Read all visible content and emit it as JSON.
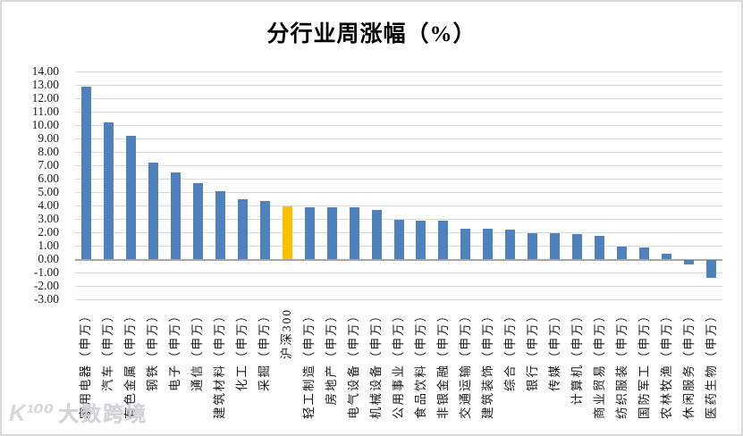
{
  "watermark": {
    "logo": "K¹⁰⁰",
    "text": "大数跨境"
  },
  "chart_data": {
    "type": "bar",
    "title": "分行业周涨幅（%）",
    "xlabel": "",
    "ylabel": "",
    "ylim": [
      -3,
      14
    ],
    "ytick_step": 1,
    "ytick_format": "two-decimals",
    "grid": true,
    "legend_position": "none",
    "bar_color": "#4F81BD",
    "highlight_color": "#FFC000",
    "highlight_category": "沪深300",
    "gridline_color": "#d9d9d9",
    "axis_line_color": "#a6a6a6",
    "categories": [
      "家用电器（申万）",
      "汽车（申万）",
      "有色金属（申万）",
      "钢铁（申万）",
      "电子（申万）",
      "通信（申万）",
      "建筑材料（申万）",
      "化工（申万）",
      "采掘（申万）",
      "沪深300",
      "轻工制造（申万）",
      "房地产（申万）",
      "电气设备（申万）",
      "机械设备（申万）",
      "公用事业（申万）",
      "食品饮料（申万）",
      "非银金融（申万）",
      "交通运输（申万）",
      "建筑装饰（申万）",
      "综合（申万）",
      "银行（申万）",
      "传媒（申万）",
      "计算机（申万）",
      "商业贸易（申万）",
      "纺织服装（申万）",
      "国防军工（申万）",
      "农林牧渔（申万）",
      "休闲服务（申万）",
      "医药生物（申万）"
    ],
    "values": [
      12.85,
      10.2,
      9.2,
      7.2,
      6.5,
      5.7,
      5.05,
      4.5,
      4.35,
      3.95,
      3.9,
      3.85,
      3.85,
      3.7,
      2.95,
      2.85,
      2.85,
      2.3,
      2.25,
      2.2,
      1.95,
      1.95,
      1.9,
      1.75,
      0.95,
      0.85,
      0.4,
      -0.3,
      -1.35
    ]
  }
}
